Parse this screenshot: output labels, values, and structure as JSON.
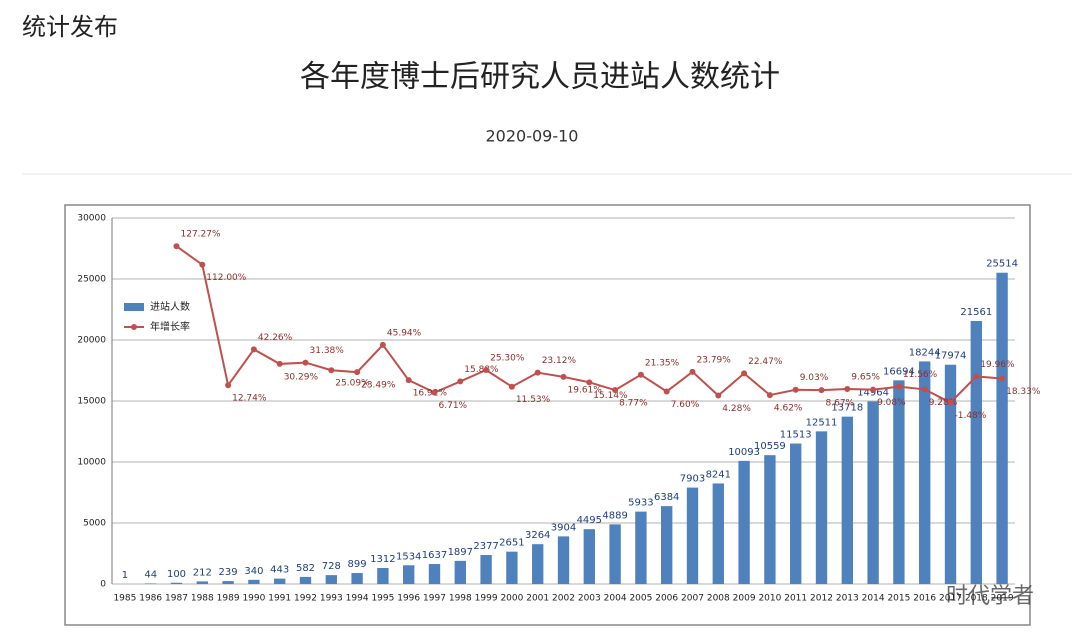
{
  "header": {
    "section": "统计发布",
    "title": "各年度博士后研究人员进站人数统计",
    "date": "2020-09-10"
  },
  "watermark": "时代学者",
  "chart_data": {
    "type": "bar_line",
    "categories": [
      "1985",
      "1986",
      "1987",
      "1988",
      "1989",
      "1990",
      "1991",
      "1992",
      "1993",
      "1994",
      "1995",
      "1996",
      "1997",
      "1998",
      "1999",
      "2000",
      "2001",
      "2002",
      "2003",
      "2004",
      "2005",
      "2006",
      "2007",
      "2008",
      "2009",
      "2010",
      "2011",
      "2012",
      "2013",
      "2014",
      "2015",
      "2016",
      "2017",
      "2018",
      "2019"
    ],
    "series": [
      {
        "name": "进站人数",
        "type": "bar",
        "color": "#4f81bd",
        "values": [
          1,
          44,
          100,
          212,
          239,
          340,
          443,
          582,
          728,
          899,
          1312,
          1534,
          1637,
          1897,
          2377,
          2651,
          3264,
          3904,
          4495,
          4889,
          5933,
          6384,
          7903,
          8241,
          10093,
          10559,
          11513,
          12511,
          13718,
          14964,
          16694,
          18244,
          17974,
          21561,
          25514
        ]
      },
      {
        "name": "年增长率",
        "type": "line",
        "axis": "y2",
        "color": "#c0504d",
        "values": [
          null,
          null,
          127.27,
          112.0,
          12.74,
          42.26,
          30.29,
          31.38,
          25.09,
          23.49,
          45.94,
          16.92,
          6.71,
          15.88,
          25.3,
          11.53,
          23.12,
          19.61,
          15.14,
          8.77,
          21.35,
          7.6,
          23.79,
          4.28,
          22.47,
          4.62,
          9.03,
          8.67,
          9.65,
          9.08,
          11.56,
          9.28,
          -1.48,
          19.96,
          18.33
        ],
        "value_labels": [
          null,
          null,
          "127.27%",
          "112.00%",
          "12.74%",
          "42.26%",
          "30.29%",
          "31.38%",
          "25.09%",
          "23.49%",
          "45.94%",
          "16.92%",
          "6.71%",
          "15.88%",
          "25.30%",
          "11.53%",
          "23.12%",
          "19.61%",
          "15.14%",
          "8.77%",
          "21.35%",
          "7.60%",
          "23.79%",
          "4.28%",
          "22.47%",
          "4.62%",
          "9.03%",
          "8.67%",
          "9.65%",
          "9.08%",
          "11.56%",
          "9.28%",
          "-1.48%",
          "19.96%",
          "18.33%"
        ]
      }
    ],
    "ylim": [
      0,
      30000
    ],
    "yticks": [
      0,
      5000,
      10000,
      15000,
      20000,
      25000,
      30000
    ],
    "y2lim": [
      -151,
      150.5
    ],
    "grid": true,
    "legend": "upper left"
  }
}
